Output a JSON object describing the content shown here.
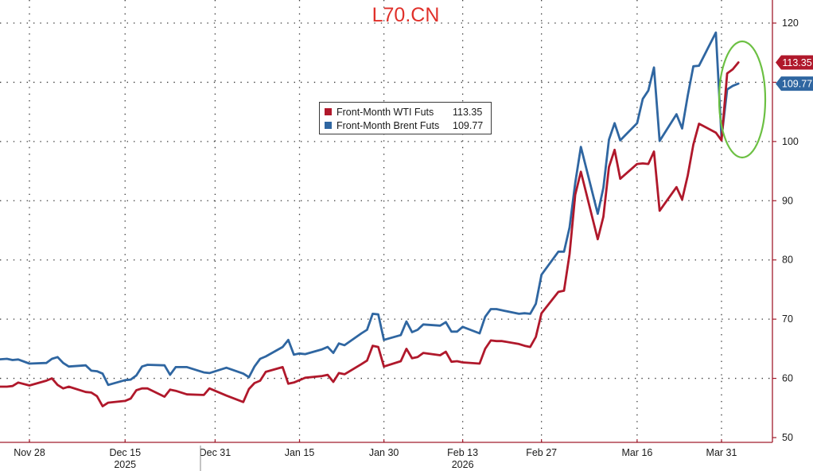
{
  "watermark": "L70.CN",
  "colors": {
    "wti": "#b0182b",
    "brent": "#2f66a1",
    "highlight_ring": "#6cc043",
    "watermark": "#e0302a"
  },
  "chart_data": {
    "type": "line",
    "title": "",
    "xlabel": "",
    "ylabel": "",
    "ylim": [
      50,
      122
    ],
    "y_ticks": [
      50,
      60,
      70,
      80,
      90,
      100,
      110,
      120
    ],
    "x_range": [
      "2025-11-21",
      "2026-04-09"
    ],
    "x_tick_labels": [
      {
        "date": "2025-11-28",
        "label": "Nov 28"
      },
      {
        "date": "2025-12-15",
        "label": "Dec 15"
      },
      {
        "date": "2025-12-31",
        "label": "Dec 31"
      },
      {
        "date": "2026-01-15",
        "label": "Jan 15"
      },
      {
        "date": "2026-01-30",
        "label": "Jan 30"
      },
      {
        "date": "2026-02-13",
        "label": "Feb 13"
      },
      {
        "date": "2026-02-27",
        "label": "Feb 27"
      },
      {
        "date": "2026-03-16",
        "label": "Mar 16"
      },
      {
        "date": "2026-03-31",
        "label": "Mar 31"
      }
    ],
    "year_labels": [
      {
        "date": "2025-12-15",
        "label": "2025"
      },
      {
        "date": "2026-02-13",
        "label": "2026"
      }
    ],
    "grid": true,
    "legend_position": "top-center",
    "series": [
      {
        "name": "Front-Month WTI Futs",
        "last_value": "113.35",
        "color": "#b0182b",
        "points": [
          [
            "2025-11-21",
            58.6
          ],
          [
            "2025-11-24",
            58.6
          ],
          [
            "2025-11-25",
            58.7
          ],
          [
            "2025-11-26",
            59.3
          ],
          [
            "2025-11-28",
            58.8
          ],
          [
            "2025-12-01",
            59.6
          ],
          [
            "2025-12-02",
            60.0
          ],
          [
            "2025-12-03",
            58.9
          ],
          [
            "2025-12-04",
            58.3
          ],
          [
            "2025-12-05",
            58.6
          ],
          [
            "2025-12-08",
            57.7
          ],
          [
            "2025-12-09",
            57.6
          ],
          [
            "2025-12-10",
            57.0
          ],
          [
            "2025-12-11",
            55.3
          ],
          [
            "2025-12-12",
            55.9
          ],
          [
            "2025-12-15",
            56.2
          ],
          [
            "2025-12-16",
            56.6
          ],
          [
            "2025-12-17",
            58.0
          ],
          [
            "2025-12-18",
            58.3
          ],
          [
            "2025-12-19",
            58.3
          ],
          [
            "2025-12-22",
            56.9
          ],
          [
            "2025-12-23",
            58.1
          ],
          [
            "2025-12-24",
            57.9
          ],
          [
            "2025-12-26",
            57.3
          ],
          [
            "2025-12-29",
            57.2
          ],
          [
            "2025-12-30",
            58.3
          ],
          [
            "2026-01-02",
            57.1
          ],
          [
            "2026-01-05",
            56.0
          ],
          [
            "2026-01-06",
            58.2
          ],
          [
            "2026-01-07",
            59.2
          ],
          [
            "2026-01-08",
            59.6
          ],
          [
            "2026-01-09",
            61.1
          ],
          [
            "2026-01-12",
            61.9
          ],
          [
            "2026-01-13",
            59.1
          ],
          [
            "2026-01-14",
            59.3
          ],
          [
            "2026-01-15",
            59.7
          ],
          [
            "2026-01-16",
            60.1
          ],
          [
            "2026-01-19",
            60.4
          ],
          [
            "2026-01-20",
            60.6
          ],
          [
            "2026-01-21",
            59.4
          ],
          [
            "2026-01-22",
            60.9
          ],
          [
            "2026-01-23",
            60.7
          ],
          [
            "2026-01-26",
            62.4
          ],
          [
            "2026-01-27",
            63.0
          ],
          [
            "2026-01-28",
            65.5
          ],
          [
            "2026-01-29",
            65.3
          ],
          [
            "2026-01-30",
            62.0
          ],
          [
            "2026-02-02",
            62.9
          ],
          [
            "2026-02-03",
            65.0
          ],
          [
            "2026-02-04",
            63.4
          ],
          [
            "2026-02-05",
            63.6
          ],
          [
            "2026-02-06",
            64.3
          ],
          [
            "2026-02-09",
            63.9
          ],
          [
            "2026-02-10",
            64.5
          ],
          [
            "2026-02-11",
            62.8
          ],
          [
            "2026-02-12",
            62.9
          ],
          [
            "2026-02-13",
            62.7
          ],
          [
            "2026-02-16",
            62.5
          ],
          [
            "2026-02-17",
            65.0
          ],
          [
            "2026-02-18",
            66.4
          ],
          [
            "2026-02-19",
            66.3
          ],
          [
            "2026-02-20",
            66.3
          ],
          [
            "2026-02-23",
            65.8
          ],
          [
            "2026-02-24",
            65.5
          ],
          [
            "2026-02-25",
            65.3
          ],
          [
            "2026-02-26",
            67.0
          ],
          [
            "2026-02-27",
            71.0
          ],
          [
            "2026-03-02",
            74.6
          ],
          [
            "2026-03-03",
            74.8
          ],
          [
            "2026-03-04",
            81.0
          ],
          [
            "2026-03-05",
            91.0
          ],
          [
            "2026-03-06",
            94.9
          ],
          [
            "2026-03-09",
            83.5
          ],
          [
            "2026-03-10",
            87.3
          ],
          [
            "2026-03-11",
            95.7
          ],
          [
            "2026-03-12",
            98.6
          ],
          [
            "2026-03-13",
            93.7
          ],
          [
            "2026-03-16",
            96.2
          ],
          [
            "2026-03-17",
            96.3
          ],
          [
            "2026-03-18",
            96.2
          ],
          [
            "2026-03-19",
            98.3
          ],
          [
            "2026-03-20",
            88.3
          ],
          [
            "2026-03-23",
            92.3
          ],
          [
            "2026-03-24",
            90.2
          ],
          [
            "2026-03-25",
            94.3
          ],
          [
            "2026-03-26",
            99.5
          ],
          [
            "2026-03-27",
            103.0
          ],
          [
            "2026-03-30",
            101.5
          ],
          [
            "2026-03-31",
            100.2
          ],
          [
            "2026-04-01",
            111.5
          ],
          [
            "2026-04-02",
            112.2
          ],
          [
            "2026-04-03",
            113.35
          ]
        ]
      },
      {
        "name": "Front-Month Brent Futs",
        "last_value": "109.77",
        "color": "#2f66a1",
        "points": [
          [
            "2025-11-21",
            63.1
          ],
          [
            "2025-11-24",
            63.3
          ],
          [
            "2025-11-25",
            63.1
          ],
          [
            "2025-11-26",
            63.2
          ],
          [
            "2025-11-28",
            62.5
          ],
          [
            "2025-12-01",
            62.6
          ],
          [
            "2025-12-02",
            63.3
          ],
          [
            "2025-12-03",
            63.6
          ],
          [
            "2025-12-04",
            62.6
          ],
          [
            "2025-12-05",
            62.0
          ],
          [
            "2025-12-08",
            62.2
          ],
          [
            "2025-12-09",
            61.3
          ],
          [
            "2025-12-10",
            61.2
          ],
          [
            "2025-12-11",
            60.8
          ],
          [
            "2025-12-12",
            58.9
          ],
          [
            "2025-12-15",
            59.7
          ],
          [
            "2025-12-16",
            59.8
          ],
          [
            "2025-12-17",
            60.5
          ],
          [
            "2025-12-18",
            62.0
          ],
          [
            "2025-12-19",
            62.3
          ],
          [
            "2025-12-22",
            62.2
          ],
          [
            "2025-12-23",
            60.6
          ],
          [
            "2025-12-24",
            61.9
          ],
          [
            "2025-12-26",
            61.9
          ],
          [
            "2025-12-29",
            61.0
          ],
          [
            "2025-12-30",
            60.9
          ],
          [
            "2026-01-02",
            61.8
          ],
          [
            "2026-01-05",
            60.8
          ],
          [
            "2026-01-06",
            60.2
          ],
          [
            "2026-01-07",
            62.0
          ],
          [
            "2026-01-08",
            63.3
          ],
          [
            "2026-01-09",
            63.7
          ],
          [
            "2026-01-12",
            65.3
          ],
          [
            "2026-01-13",
            66.5
          ],
          [
            "2026-01-14",
            64.0
          ],
          [
            "2026-01-15",
            64.2
          ],
          [
            "2026-01-16",
            64.1
          ],
          [
            "2026-01-19",
            64.9
          ],
          [
            "2026-01-20",
            65.3
          ],
          [
            "2026-01-21",
            64.3
          ],
          [
            "2026-01-22",
            65.9
          ],
          [
            "2026-01-23",
            65.6
          ],
          [
            "2026-01-26",
            67.6
          ],
          [
            "2026-01-27",
            68.2
          ],
          [
            "2026-01-28",
            70.9
          ],
          [
            "2026-01-29",
            70.8
          ],
          [
            "2026-01-30",
            66.5
          ],
          [
            "2026-02-02",
            67.3
          ],
          [
            "2026-02-03",
            69.6
          ],
          [
            "2026-02-04",
            67.8
          ],
          [
            "2026-02-05",
            68.2
          ],
          [
            "2026-02-06",
            69.1
          ],
          [
            "2026-02-09",
            68.9
          ],
          [
            "2026-02-10",
            69.5
          ],
          [
            "2026-02-11",
            67.9
          ],
          [
            "2026-02-12",
            67.9
          ],
          [
            "2026-02-13",
            68.7
          ],
          [
            "2026-02-16",
            67.6
          ],
          [
            "2026-02-17",
            70.4
          ],
          [
            "2026-02-18",
            71.7
          ],
          [
            "2026-02-19",
            71.7
          ],
          [
            "2026-02-20",
            71.5
          ],
          [
            "2026-02-23",
            70.9
          ],
          [
            "2026-02-24",
            71.0
          ],
          [
            "2026-02-25",
            70.9
          ],
          [
            "2026-02-26",
            72.6
          ],
          [
            "2026-02-27",
            77.5
          ],
          [
            "2026-03-02",
            81.4
          ],
          [
            "2026-03-03",
            81.4
          ],
          [
            "2026-03-04",
            85.5
          ],
          [
            "2026-03-05",
            93.0
          ],
          [
            "2026-03-06",
            99.1
          ],
          [
            "2026-03-09",
            87.8
          ],
          [
            "2026-03-10",
            92.2
          ],
          [
            "2026-03-11",
            100.3
          ],
          [
            "2026-03-12",
            103.1
          ],
          [
            "2026-03-13",
            100.2
          ],
          [
            "2026-03-16",
            103.1
          ],
          [
            "2026-03-17",
            107.2
          ],
          [
            "2026-03-18",
            108.6
          ],
          [
            "2026-03-19",
            112.5
          ],
          [
            "2026-03-20",
            100.1
          ],
          [
            "2026-03-23",
            104.6
          ],
          [
            "2026-03-24",
            102.2
          ],
          [
            "2026-03-25",
            107.8
          ],
          [
            "2026-03-26",
            112.7
          ],
          [
            "2026-03-27",
            112.8
          ],
          [
            "2026-03-30",
            118.4
          ],
          [
            "2026-03-31",
            100.6
          ],
          [
            "2026-04-01",
            108.8
          ],
          [
            "2026-04-02",
            109.4
          ],
          [
            "2026-04-03",
            109.77
          ]
        ]
      }
    ]
  }
}
